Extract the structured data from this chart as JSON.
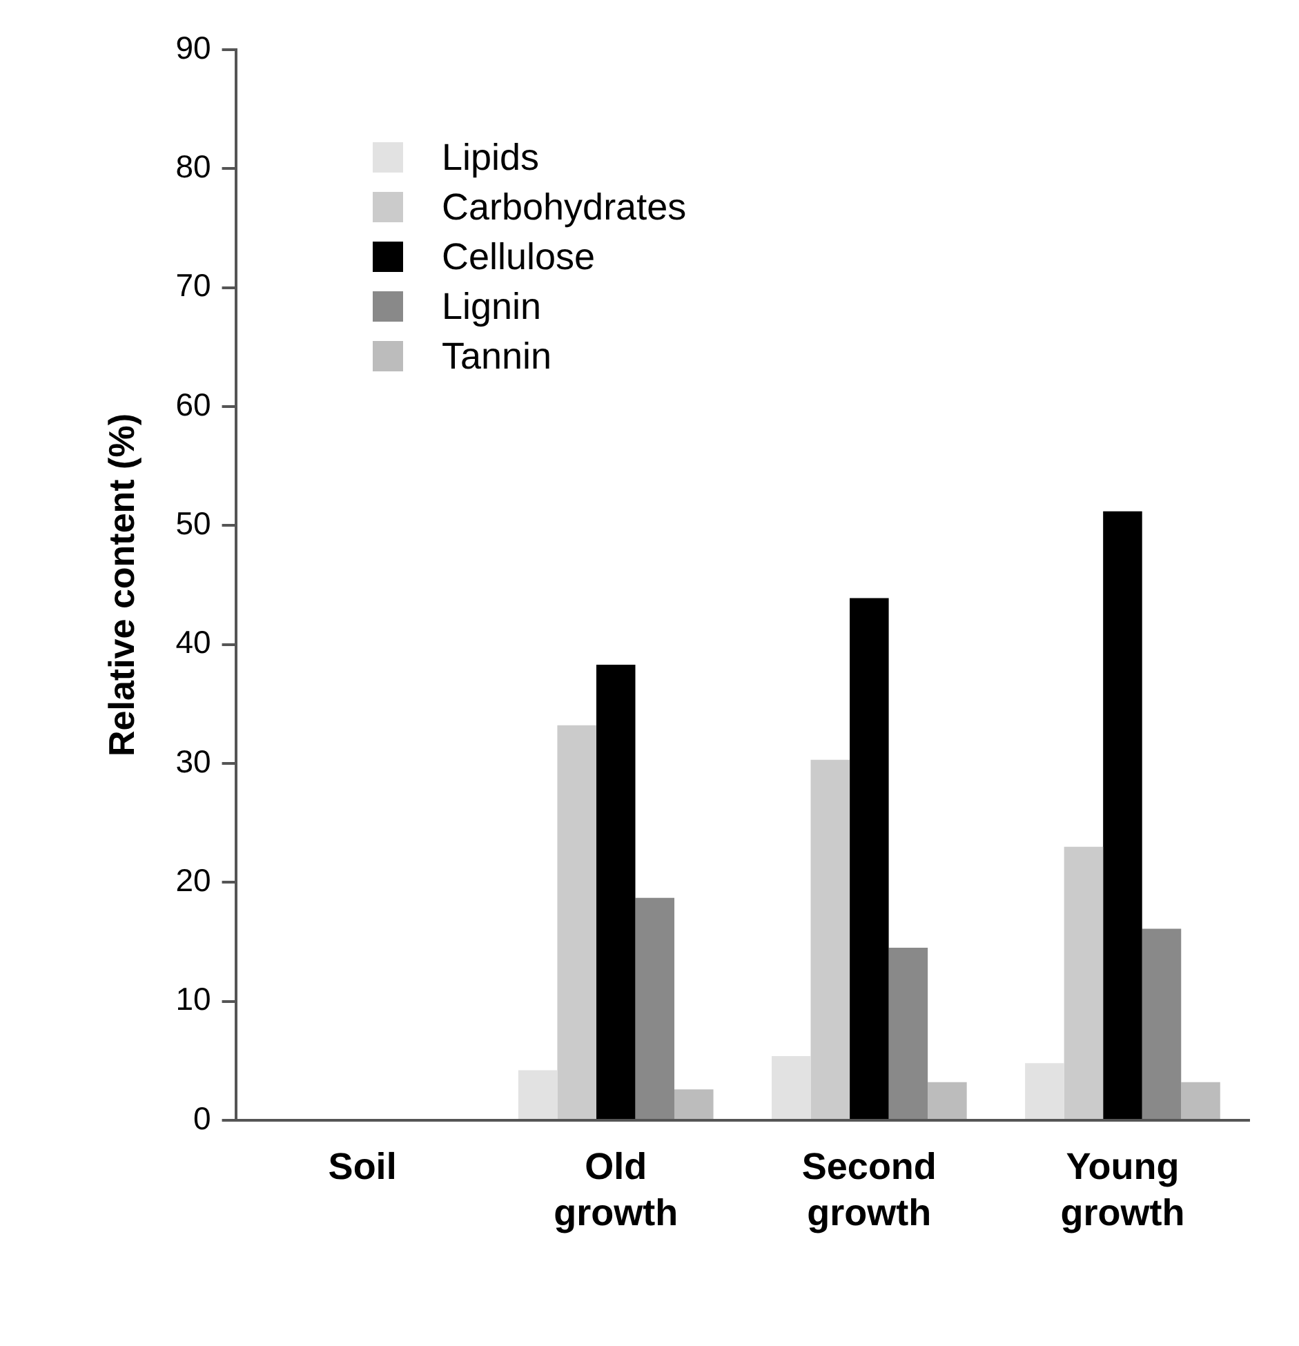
{
  "chart_data": {
    "type": "bar",
    "ylabel": "Relative content (%)",
    "categories": [
      "Soil",
      "Old growth",
      "Second growth",
      "Young growth"
    ],
    "series": [
      {
        "name": "Lipids",
        "color": "#e2e2e2",
        "values": [
          null,
          4.2,
          5.4,
          4.8
        ]
      },
      {
        "name": "Carbohydrates",
        "color": "#cbcbcb",
        "values": [
          null,
          33.2,
          30.3,
          23.0
        ]
      },
      {
        "name": "Cellulose",
        "color": "#000000",
        "values": [
          null,
          38.3,
          43.9,
          51.2
        ]
      },
      {
        "name": "Lignin",
        "color": "#898989",
        "values": [
          null,
          18.7,
          14.5,
          16.1
        ]
      },
      {
        "name": "Tannin",
        "color": "#bcbcbc",
        "values": [
          null,
          2.6,
          3.2,
          3.2
        ]
      }
    ],
    "ylim": [
      0,
      90
    ],
    "yticks": [
      0,
      10,
      20,
      30,
      40,
      50,
      60,
      70,
      80,
      90
    ],
    "grid": false,
    "legend": "top left"
  }
}
